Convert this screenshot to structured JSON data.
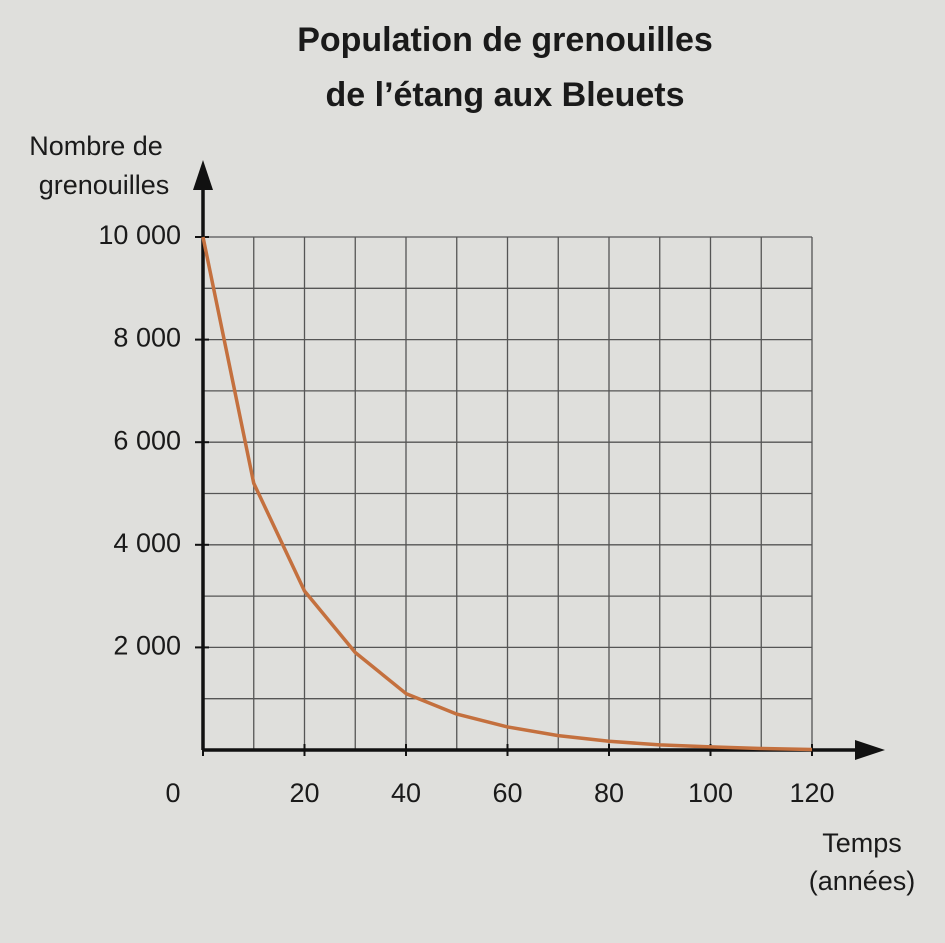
{
  "chart_data": {
    "type": "line",
    "title": [
      "Population de grenouilles",
      "de l’étang aux Bleuets"
    ],
    "ylabel": [
      "Nombre de",
      "grenouilles"
    ],
    "xlabel": [
      "Temps",
      "(années)"
    ],
    "x": [
      0,
      10,
      20,
      30,
      40,
      50,
      60,
      70,
      80,
      90,
      100,
      110,
      120
    ],
    "series": [
      {
        "color": "#c4703e",
        "values": [
          10000,
          5200,
          3100,
          1900,
          1100,
          700,
          450,
          280,
          170,
          100,
          60,
          30,
          10
        ]
      }
    ],
    "xlim": [
      0,
      120
    ],
    "ylim": [
      0,
      10000
    ],
    "xticks": [
      0,
      20,
      40,
      60,
      80,
      100,
      120
    ],
    "yticks": [
      {
        "value": 2000,
        "label": "2 000"
      },
      {
        "value": 4000,
        "label": "4 000"
      },
      {
        "value": 6000,
        "label": "6 000"
      },
      {
        "value": 8000,
        "label": "8 000"
      },
      {
        "value": 10000,
        "label": "10 000"
      }
    ],
    "minor_xticks": [
      10,
      30,
      50,
      70,
      90,
      110
    ],
    "minor_yticks": [
      1000,
      3000,
      5000,
      7000,
      9000
    ],
    "grid": true
  }
}
